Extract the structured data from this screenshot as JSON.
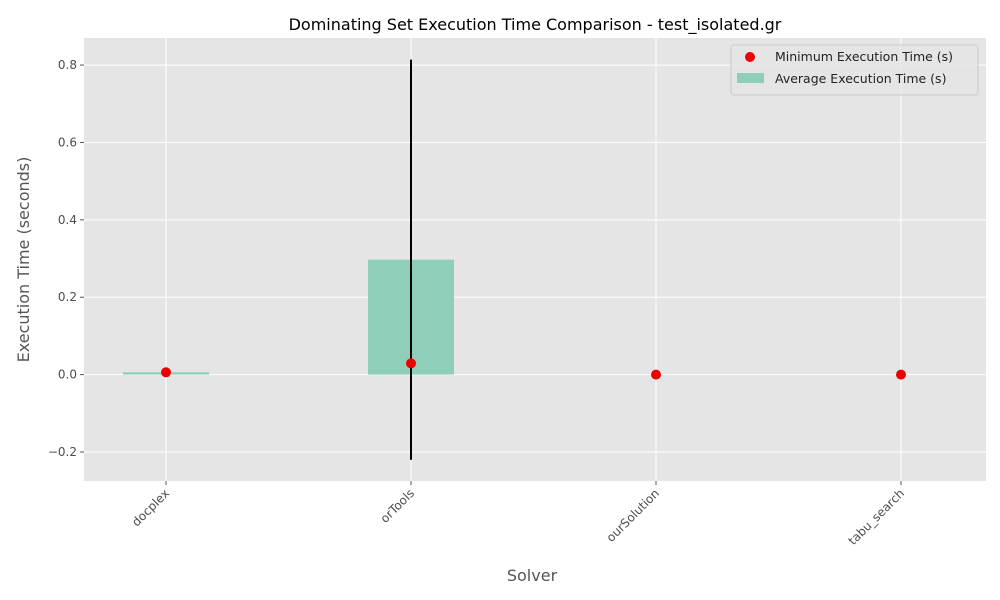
{
  "chart_data": {
    "type": "bar",
    "title": "Dominating Set Execution Time Comparison - test_isolated.gr",
    "xlabel": "Solver",
    "ylabel": "Execution Time (seconds)",
    "categories": [
      "docplex",
      "orTools",
      "ourSolution",
      "tabu_search"
    ],
    "ylim": [
      -0.275,
      0.87
    ],
    "yticks": [
      -0.2,
      0.0,
      0.2,
      0.4,
      0.6,
      0.8
    ],
    "ytick_labels": [
      "−0.2",
      "0.0",
      "0.2",
      "0.4",
      "0.6",
      "0.8"
    ],
    "grid": true,
    "legend_position": "top-right",
    "series": [
      {
        "name": "Average Execution Time (s)",
        "kind": "bar",
        "color": "#8fcfb9",
        "values": [
          0.006,
          0.297,
          0.0,
          0.0
        ],
        "error": [
          0.0,
          0.517,
          0.0,
          0.0
        ]
      },
      {
        "name": "Minimum Execution Time (s)",
        "kind": "scatter",
        "color": "#ee0000",
        "values": [
          0.006,
          0.029,
          0.0,
          0.0
        ]
      }
    ],
    "colors": {
      "plot_background": "#e5e5e5",
      "grid": "#ffffff",
      "error_bar": "#000000"
    }
  }
}
